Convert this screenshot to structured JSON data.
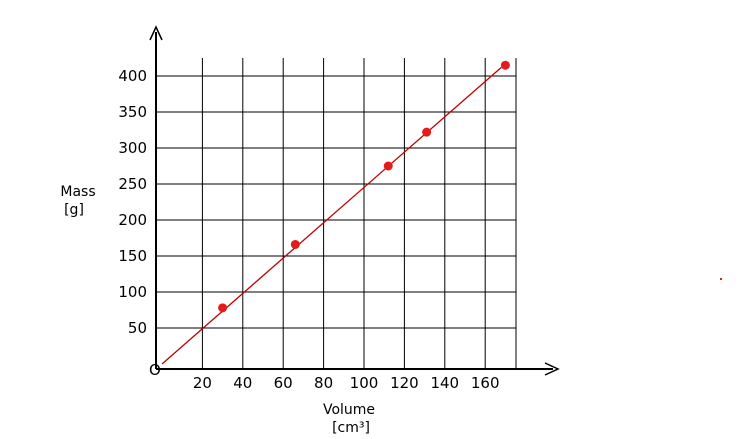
{
  "chart_data": {
    "type": "scatter",
    "x_axis": {
      "label": "Volume",
      "unit": "[cm³]",
      "ticks": [
        20,
        40,
        60,
        80,
        100,
        120,
        140,
        160
      ],
      "range": [
        0,
        175
      ]
    },
    "y_axis": {
      "label": "Mass",
      "unit": "[g]",
      "ticks": [
        50,
        100,
        150,
        200,
        250,
        300,
        350,
        400
      ],
      "range": [
        0,
        420
      ]
    },
    "origin_label": "O",
    "grid": true,
    "points": [
      {
        "x": 30,
        "y": 78
      },
      {
        "x": 66,
        "y": 166
      },
      {
        "x": 112,
        "y": 275
      },
      {
        "x": 131,
        "y": 322
      },
      {
        "x": 170,
        "y": 415
      }
    ],
    "fit_line": {
      "x": [
        0,
        168
      ],
      "y": [
        0,
        412
      ]
    },
    "colors": {
      "points": "#e31b1b",
      "fit_line": "#c00000",
      "grid": "#000000"
    }
  }
}
